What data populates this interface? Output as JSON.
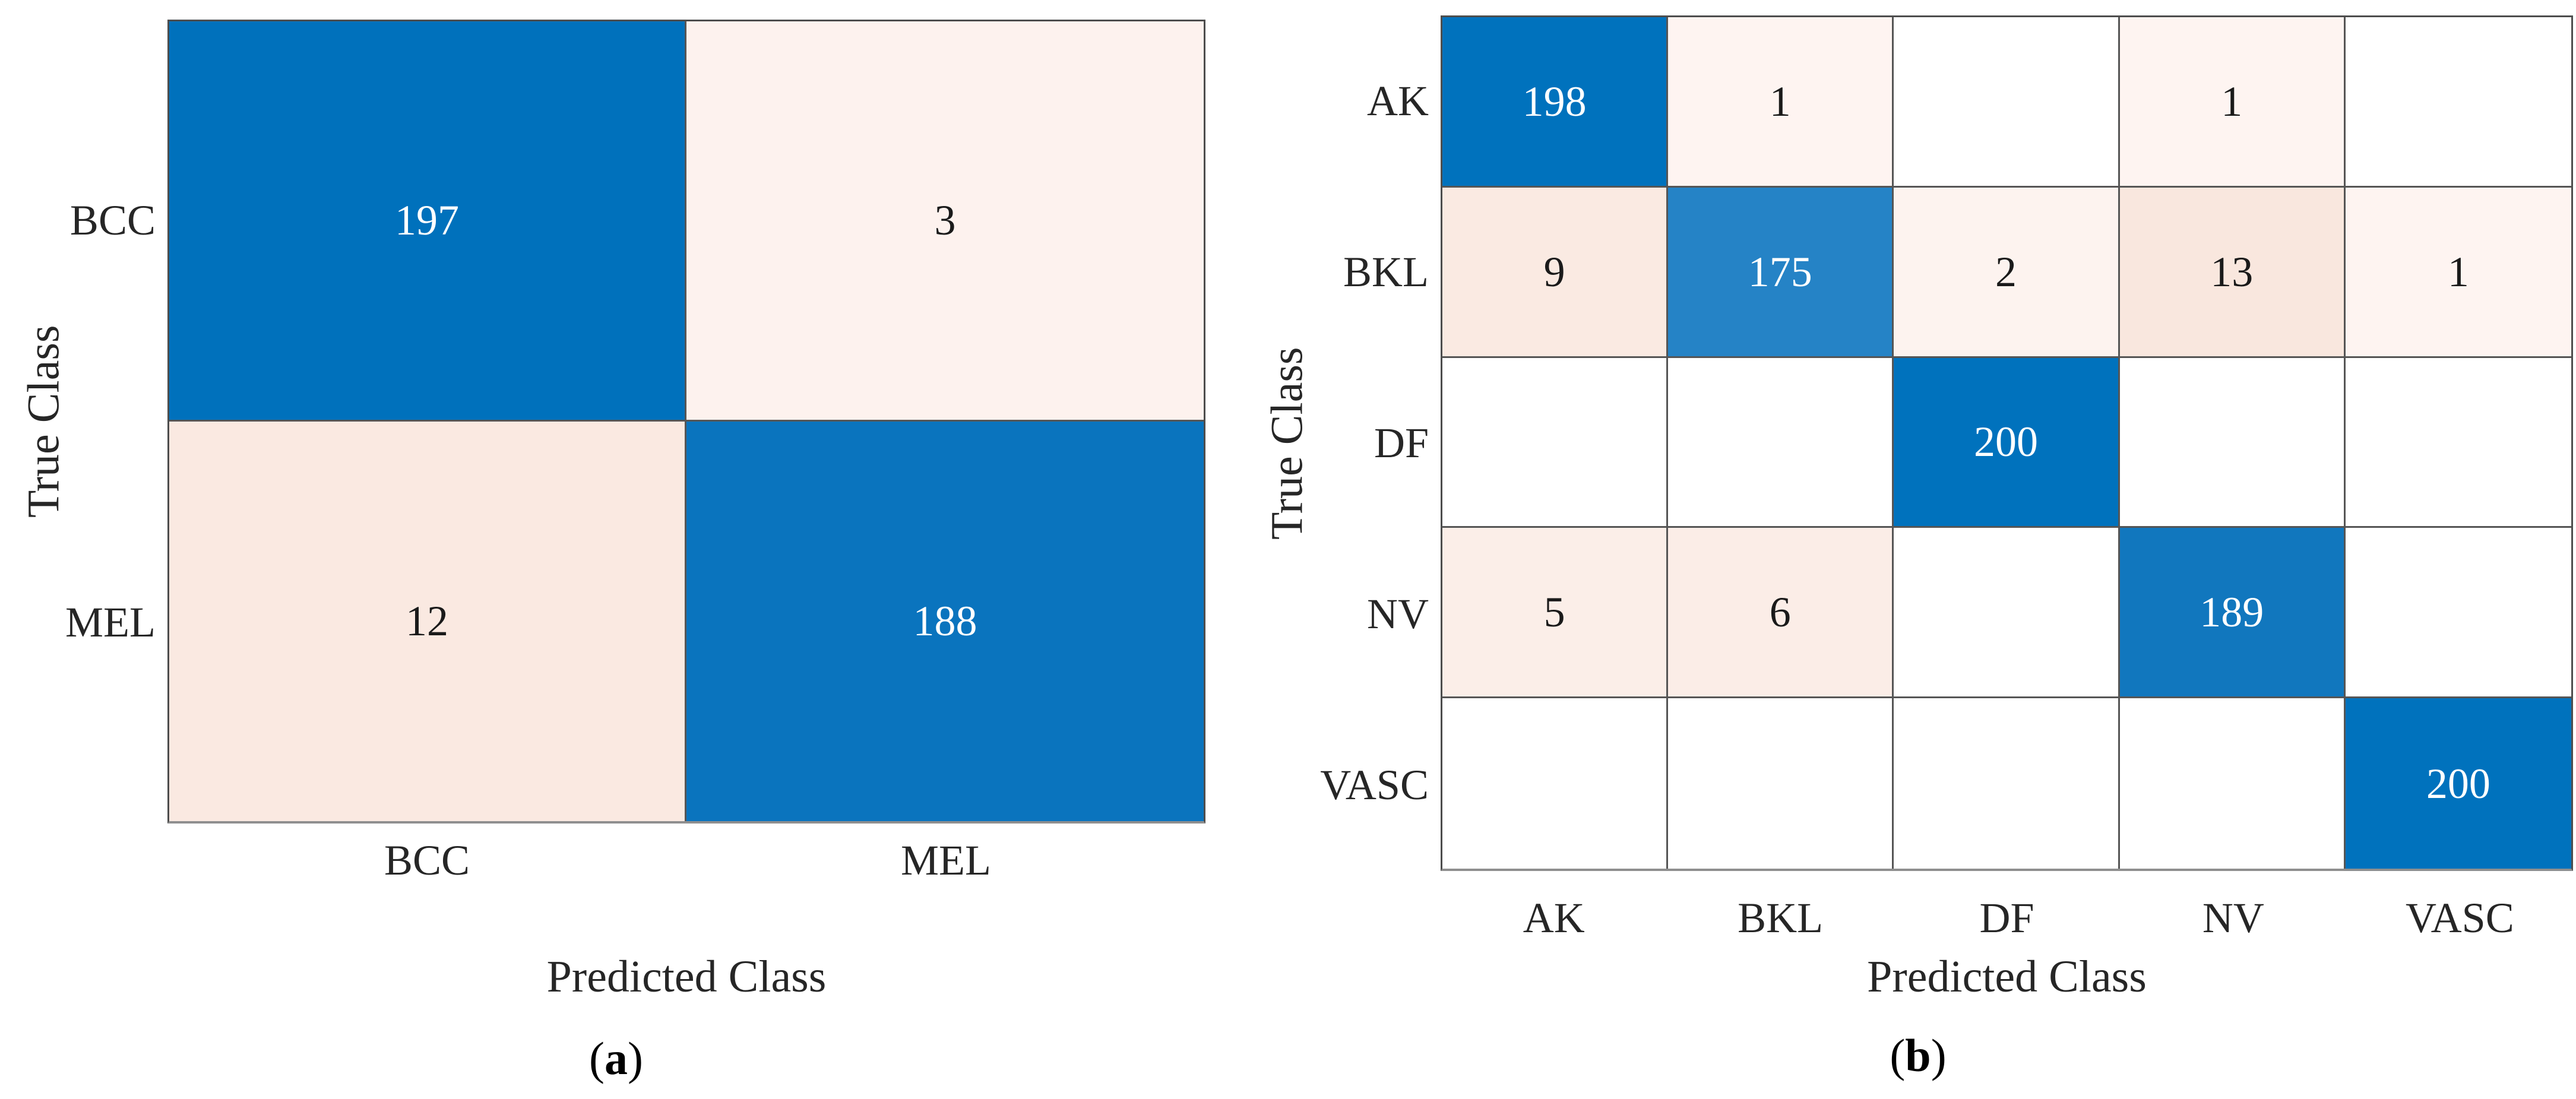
{
  "page": {
    "background": "#ffffff",
    "figure_kind": "two confusion matrix heatmaps side by side"
  },
  "chart_data": [
    {
      "type": "heatmap",
      "panel": "a",
      "caption_open": "(",
      "caption_letter": "a",
      "caption_close": ")",
      "xlabel": "Predicted Class",
      "ylabel": "True Class",
      "x_categories": [
        "BCC",
        "MEL"
      ],
      "y_categories": [
        "BCC",
        "MEL"
      ],
      "values": [
        [
          197,
          3
        ],
        [
          12,
          188
        ]
      ],
      "blank_cells": "cells with value 0 are shown empty and white",
      "cell_colors": [
        [
          "#0071BC",
          "#FDF2EE"
        ],
        [
          "#FAE9E1",
          "#0A74BE"
        ]
      ],
      "text_colors": [
        [
          "#FFFFFF",
          "#1A1A1A"
        ],
        [
          "#1A1A1A",
          "#FFFFFF"
        ]
      ]
    },
    {
      "type": "heatmap",
      "panel": "b",
      "caption_open": "(",
      "caption_letter": "b",
      "caption_close": ")",
      "xlabel": "Predicted Class",
      "ylabel": "True Class",
      "x_categories": [
        "AK",
        "BKL",
        "DF",
        "NV",
        "VASC"
      ],
      "y_categories": [
        "AK",
        "BKL",
        "DF",
        "NV",
        "VASC"
      ],
      "values": [
        [
          198,
          1,
          0,
          1,
          0
        ],
        [
          9,
          175,
          2,
          13,
          1
        ],
        [
          0,
          0,
          200,
          0,
          0
        ],
        [
          5,
          6,
          0,
          189,
          0
        ],
        [
          0,
          0,
          0,
          0,
          200
        ]
      ],
      "blank_cells": "cells with value 0 are shown empty and white",
      "cell_colors": [
        [
          "#0072BD",
          "#FEF4F1",
          "#FFFFFF",
          "#FEF4F1",
          "#FFFFFF"
        ],
        [
          "#FAEAE2",
          "#2583C6",
          "#FDF3EF",
          "#F9E7DE",
          "#FEF4F1"
        ],
        [
          "#FFFFFF",
          "#FFFFFF",
          "#0072BD",
          "#FFFFFF",
          "#FFFFFF"
        ],
        [
          "#FBEEE8",
          "#FBEDE7",
          "#FFFFFF",
          "#1177BE",
          "#FFFFFF"
        ],
        [
          "#FFFFFF",
          "#FFFFFF",
          "#FFFFFF",
          "#FFFFFF",
          "#0072BD"
        ]
      ],
      "text_colors": [
        [
          "#FFFFFF",
          "#1A1A1A",
          "#1A1A1A",
          "#1A1A1A",
          "#1A1A1A"
        ],
        [
          "#1A1A1A",
          "#FFFFFF",
          "#1A1A1A",
          "#1A1A1A",
          "#1A1A1A"
        ],
        [
          "#1A1A1A",
          "#1A1A1A",
          "#FFFFFF",
          "#1A1A1A",
          "#1A1A1A"
        ],
        [
          "#1A1A1A",
          "#1A1A1A",
          "#1A1A1A",
          "#FFFFFF",
          "#1A1A1A"
        ],
        [
          "#1A1A1A",
          "#1A1A1A",
          "#1A1A1A",
          "#1A1A1A",
          "#FFFFFF"
        ]
      ]
    }
  ]
}
